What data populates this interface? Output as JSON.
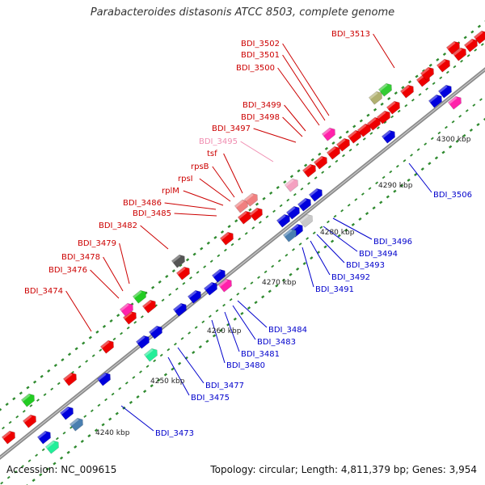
{
  "title": "Parabacteroides distasonis ATCC 8503, complete genome",
  "footer": {
    "accession": "Accession: NC_009615",
    "info": "Topology: circular; Length: 4,811,379 bp; Genes: 3,954"
  },
  "colors": {
    "backbone": "#888888",
    "plus_label": "#cc0000",
    "minus_label": "#0000cc",
    "faded_label": "#f08cb0",
    "ticks": "#2f8a2f"
  },
  "scale_labels": [
    "4240 kbp",
    "4250 kbp",
    "4260 kbp",
    "4270 kbp",
    "4280 kbp",
    "4290 kbp",
    "4300 kbp"
  ],
  "plus_labels": [
    "BDI_3513",
    "BDI_3502",
    "BDI_3501",
    "BDI_3500",
    "BDI_3499",
    "BDI_3498",
    "BDI_3497",
    "BDI_3495",
    "tsf",
    "rpsB",
    "rpsI",
    "rplM",
    "BDI_3486",
    "BDI_3485",
    "BDI_3482",
    "BDI_3479",
    "BDI_3478",
    "BDI_3476",
    "BDI_3474"
  ],
  "minus_labels": [
    "BDI_3506",
    "BDI_3496",
    "BDI_3494",
    "BDI_3493",
    "BDI_3492",
    "BDI_3491",
    "BDI_3484",
    "BDI_3483",
    "BDI_3481",
    "BDI_3480",
    "BDI_3477",
    "BDI_3475",
    "BDI_3473"
  ]
}
